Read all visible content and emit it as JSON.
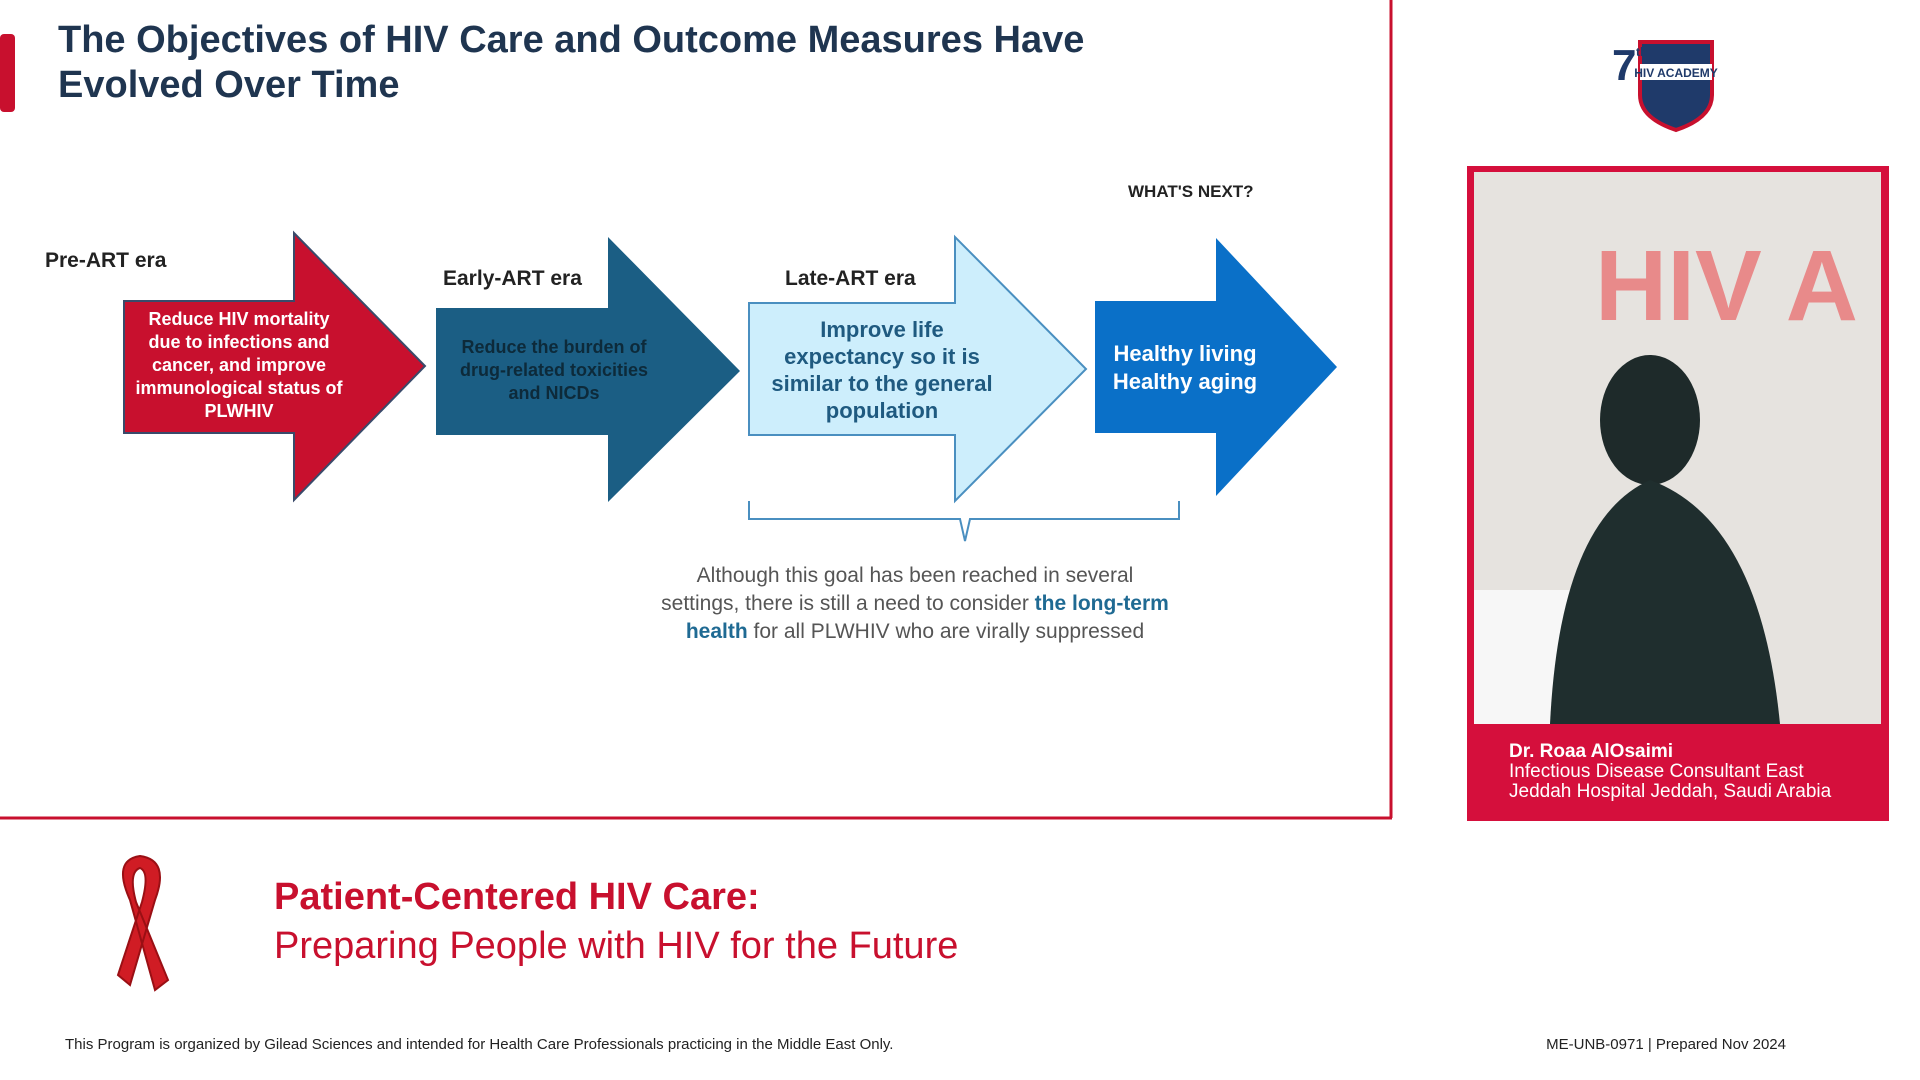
{
  "slide": {
    "title_lines": [
      "The Objectives of HIV Care and Outcome Measures Have",
      "Evolved Over Time"
    ],
    "eras": [
      {
        "label": "Pre-ART era",
        "text": "Reduce HIV mortality due to infections and cancer, and improve immunological status of PLWHIV"
      },
      {
        "label": "Early-ART era",
        "text": "Reduce the burden of drug-related toxicities and NICDs"
      },
      {
        "label": "Late-ART era",
        "text": "Improve life expectancy so it is similar to the general population"
      },
      {
        "label": "WHAT'S NEXT?",
        "text_lines": [
          "Healthy living",
          "Healthy aging"
        ]
      }
    ],
    "note_parts": [
      "Although this goal has been reached in several settings, there is still a need to consider ",
      "the long-term health",
      " for all PLWHIV who are virally suppressed"
    ]
  },
  "logo": {
    "number": "7",
    "suffix": "th",
    "name": "HIV ACADEMY"
  },
  "speaker": {
    "name": "Dr. Roaa AlOsaimi",
    "role_lines": [
      "Infectious Disease Consultant East",
      "Jeddah Hospital Jeddah, Saudi Arabia"
    ]
  },
  "program": {
    "title": "Patient-Centered HIV Care:",
    "subtitle": "Preparing People with HIV for the Future"
  },
  "footer": {
    "disclaimer": "This Program is organized by Gilead Sciences and intended for Health Care Professionals practicing in the Middle East Only.",
    "code": "ME-UNB-0971 | Prepared Nov 2024"
  }
}
